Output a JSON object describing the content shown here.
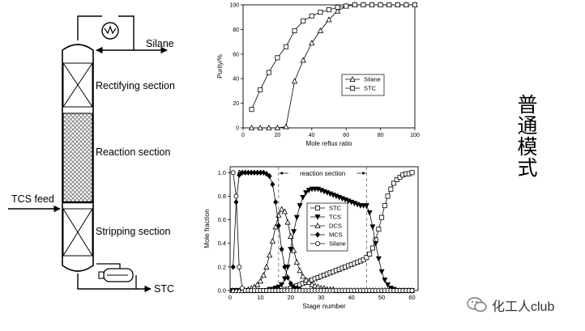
{
  "diagram": {
    "labels": {
      "silane": "Silane",
      "rectifying": "Rectifying section",
      "reaction": "Reaction section",
      "tcs_feed": "TCS feed",
      "stripping": "Stripping section",
      "stc": "STC"
    }
  },
  "side_title": "普通模式",
  "watermark": "化工人club",
  "chart_data": [
    {
      "type": "line",
      "xlabel": "Mole reflux ratio",
      "ylabel": "Purity/%",
      "xlim": [
        0,
        100
      ],
      "ylim": [
        0,
        100
      ],
      "xticks": [
        0,
        20,
        40,
        60,
        80,
        100
      ],
      "yticks": [
        0,
        20,
        40,
        60,
        80,
        100
      ],
      "legend_position": "middle-right",
      "series": [
        {
          "name": "Silane",
          "marker": "triangle",
          "x": [
            5,
            10,
            15,
            20,
            25,
            30,
            35,
            40,
            45,
            50,
            55,
            60,
            65,
            70,
            75,
            80,
            85,
            90,
            95,
            100
          ],
          "y": [
            0,
            0,
            0,
            0,
            1,
            38,
            55,
            69,
            79,
            88,
            95,
            99,
            100,
            100,
            100,
            100,
            100,
            100,
            100,
            100
          ]
        },
        {
          "name": "STC",
          "marker": "square",
          "x": [
            5,
            10,
            15,
            20,
            25,
            30,
            35,
            40,
            45,
            50,
            55,
            60,
            65,
            70,
            75,
            80,
            85,
            90,
            95,
            100
          ],
          "y": [
            15,
            31,
            45,
            57,
            66,
            79,
            87,
            91,
            94,
            96,
            98,
            99,
            100,
            100,
            100,
            100,
            100,
            100,
            100,
            100
          ]
        }
      ]
    },
    {
      "type": "line",
      "xlabel": "Stage number",
      "ylabel": "Mole fraction",
      "xlim": [
        0,
        62
      ],
      "ylim": [
        0,
        1.05
      ],
      "xticks": [
        0,
        10,
        20,
        30,
        40,
        50,
        60
      ],
      "yticks": [
        "0.0",
        "0.2",
        "0.4",
        "0.6",
        "0.8",
        "1.0"
      ],
      "annotations": {
        "section": "reaction section",
        "marker": "A",
        "boundaries": [
          16,
          45
        ]
      },
      "legend_position": "middle-right",
      "series": [
        {
          "name": "STC",
          "marker": "square-open",
          "x": [
            1,
            2,
            3,
            4,
            5,
            6,
            7,
            8,
            9,
            10,
            11,
            12,
            13,
            14,
            15,
            16,
            17,
            18,
            19,
            20,
            21,
            22,
            23,
            24,
            25,
            26,
            27,
            28,
            29,
            30,
            31,
            32,
            33,
            34,
            35,
            36,
            37,
            38,
            39,
            40,
            41,
            42,
            43,
            44,
            45,
            46,
            47,
            48,
            49,
            50,
            51,
            52,
            53,
            54,
            55,
            56,
            57,
            58,
            59,
            60
          ],
          "y": [
            0,
            0,
            0,
            0,
            0,
            0,
            0,
            0,
            0,
            0,
            0,
            0,
            0,
            0,
            0,
            0,
            0,
            0.01,
            0.01,
            0.02,
            0.03,
            0.04,
            0.05,
            0.06,
            0.07,
            0.08,
            0.09,
            0.1,
            0.11,
            0.12,
            0.13,
            0.14,
            0.15,
            0.16,
            0.17,
            0.18,
            0.19,
            0.2,
            0.21,
            0.22,
            0.23,
            0.24,
            0.25,
            0.26,
            0.28,
            0.31,
            0.36,
            0.43,
            0.52,
            0.62,
            0.72,
            0.8,
            0.86,
            0.91,
            0.94,
            0.96,
            0.98,
            0.99,
            0.99,
            1.0
          ]
        },
        {
          "name": "TCS",
          "marker": "triangle-down-filled",
          "x": [
            1,
            2,
            3,
            4,
            5,
            6,
            7,
            8,
            9,
            10,
            11,
            12,
            13,
            14,
            15,
            16,
            17,
            18,
            19,
            20,
            21,
            22,
            23,
            24,
            25,
            26,
            27,
            28,
            29,
            30,
            31,
            32,
            33,
            34,
            35,
            36,
            37,
            38,
            39,
            40,
            41,
            42,
            43,
            44,
            45,
            46,
            47,
            48,
            49,
            50,
            51,
            52,
            53,
            54,
            55,
            56,
            57,
            58,
            59,
            60
          ],
          "y": [
            0,
            0,
            0,
            0,
            0,
            0,
            0,
            0,
            0,
            0,
            0,
            0,
            0.01,
            0.01,
            0.02,
            0.03,
            0.05,
            0.1,
            0.2,
            0.35,
            0.5,
            0.62,
            0.72,
            0.79,
            0.83,
            0.85,
            0.86,
            0.86,
            0.86,
            0.85,
            0.84,
            0.83,
            0.82,
            0.81,
            0.8,
            0.79,
            0.78,
            0.77,
            0.76,
            0.75,
            0.74,
            0.73,
            0.72,
            0.72,
            0.72,
            0.66,
            0.54,
            0.4,
            0.27,
            0.16,
            0.09,
            0.05,
            0.02,
            0.01,
            0,
            0,
            0,
            0,
            0,
            0
          ]
        },
        {
          "name": "DCS",
          "marker": "triangle-open",
          "x": [
            1,
            2,
            3,
            4,
            5,
            6,
            7,
            8,
            9,
            10,
            11,
            12,
            13,
            14,
            15,
            16,
            17,
            18,
            19,
            20,
            21,
            22,
            23,
            24,
            25,
            26,
            27,
            28,
            29,
            30,
            31,
            32,
            33,
            34,
            35,
            36,
            37,
            38,
            39,
            40,
            41,
            42,
            43,
            44,
            45,
            46,
            47,
            48,
            49,
            50,
            51,
            52,
            53,
            54,
            55,
            56,
            57,
            58,
            59,
            60
          ],
          "y": [
            0,
            0,
            0,
            0,
            0,
            0.01,
            0.02,
            0.03,
            0.05,
            0.08,
            0.13,
            0.2,
            0.3,
            0.42,
            0.54,
            0.64,
            0.69,
            0.67,
            0.58,
            0.46,
            0.34,
            0.24,
            0.17,
            0.12,
            0.09,
            0.07,
            0.05,
            0.04,
            0.03,
            0.02,
            0.02,
            0.01,
            0.01,
            0.01,
            0,
            0,
            0,
            0,
            0,
            0,
            0,
            0,
            0,
            0,
            0,
            0,
            0,
            0,
            0,
            0,
            0,
            0,
            0,
            0,
            0,
            0,
            0,
            0,
            0,
            0
          ]
        },
        {
          "name": "MCS",
          "marker": "diamond-filled",
          "x": [
            1,
            2,
            3,
            4,
            5,
            6,
            7,
            8,
            9,
            10,
            11,
            12,
            13,
            14,
            15,
            16,
            17,
            18,
            19,
            20,
            21,
            22,
            23,
            24,
            25,
            26,
            27,
            28,
            29,
            30,
            31,
            32,
            33,
            34,
            35,
            36,
            37,
            38,
            39,
            40,
            41,
            42,
            43,
            44,
            45,
            46,
            47,
            48,
            49,
            50,
            51,
            52,
            53,
            54,
            55,
            56,
            57,
            58,
            59,
            60
          ],
          "y": [
            0.2,
            0.75,
            0.98,
            1.0,
            1.0,
            1.0,
            1.0,
            1.0,
            1.0,
            1.0,
            1.0,
            0.99,
            0.97,
            0.9,
            0.75,
            0.55,
            0.35,
            0.2,
            0.11,
            0.06,
            0.03,
            0.02,
            0.01,
            0,
            0,
            0,
            0,
            0,
            0,
            0,
            0,
            0,
            0,
            0,
            0,
            0,
            0,
            0,
            0,
            0,
            0,
            0,
            0,
            0,
            0,
            0,
            0,
            0,
            0,
            0,
            0,
            0,
            0,
            0,
            0,
            0,
            0,
            0,
            0,
            0
          ]
        },
        {
          "name": "Silane",
          "marker": "circle-open",
          "x": [
            1,
            2,
            3,
            4,
            5,
            6,
            7,
            8,
            9,
            10,
            11,
            12,
            13,
            14,
            15,
            16,
            17,
            18,
            19,
            20,
            21,
            22,
            23,
            24,
            25,
            26,
            27,
            28,
            29,
            30,
            31,
            32,
            33,
            34,
            35,
            36,
            37,
            38,
            39,
            40,
            41,
            42,
            43,
            44,
            45,
            46,
            47,
            48,
            49,
            50,
            51,
            52,
            53,
            54,
            55,
            56,
            57,
            58,
            59,
            60
          ],
          "y": [
            1.0,
            0.8,
            0.2,
            0.02,
            0,
            0,
            0,
            0,
            0,
            0,
            0,
            0,
            0,
            0,
            0,
            0,
            0,
            0,
            0,
            0,
            0,
            0,
            0,
            0,
            0,
            0,
            0,
            0,
            0,
            0,
            0,
            0,
            0,
            0,
            0,
            0,
            0,
            0,
            0,
            0,
            0,
            0,
            0,
            0,
            0,
            0,
            0,
            0,
            0,
            0,
            0,
            0,
            0,
            0,
            0,
            0,
            0,
            0,
            0,
            0
          ]
        }
      ]
    }
  ]
}
